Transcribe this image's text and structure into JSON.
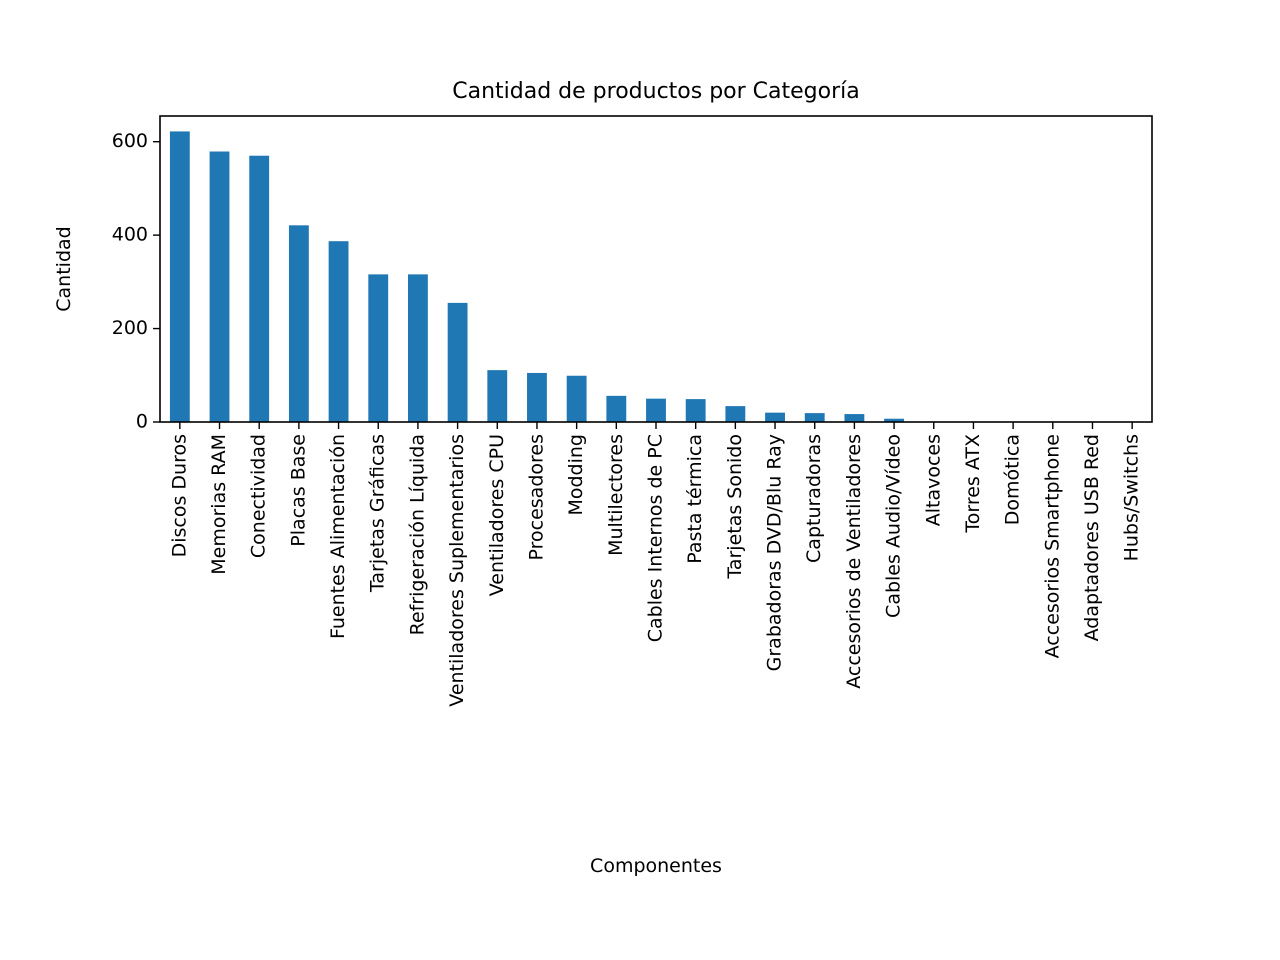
{
  "chart_data": {
    "type": "bar",
    "title": "Cantidad de productos por Categoría",
    "xlabel": "Componentes",
    "ylabel": "Cantidad",
    "ylim": [
      0,
      655
    ],
    "yticks": [
      0,
      200,
      400,
      600
    ],
    "grid": false,
    "bar_color": "#1f77b4",
    "categories": [
      "Discos Duros",
      "Memorias RAM",
      "Conectividad",
      "Placas Base",
      "Fuentes Alimentación",
      "Tarjetas Gráficas",
      "Refrigeración Líquida",
      "Ventiladores Suplementarios",
      "Ventiladores CPU",
      "Procesadores",
      "Modding",
      "Multilectores",
      "Cables Internos de PC",
      "Pasta térmica",
      "Tarjetas Sonido",
      "Grabadoras DVD/Blu Ray",
      "Capturadoras",
      "Accesorios de Ventiladores",
      "Cables Audio/Vídeo",
      "Altavoces",
      "Torres ATX",
      "Domótica",
      "Accesorios Smartphone",
      "Adaptadores USB Red",
      "Hubs/Switchs"
    ],
    "values": [
      622,
      579,
      570,
      421,
      387,
      316,
      316,
      255,
      111,
      105,
      99,
      56,
      50,
      49,
      34,
      20,
      19,
      17,
      7,
      1,
      1,
      1,
      1,
      1,
      1
    ]
  }
}
